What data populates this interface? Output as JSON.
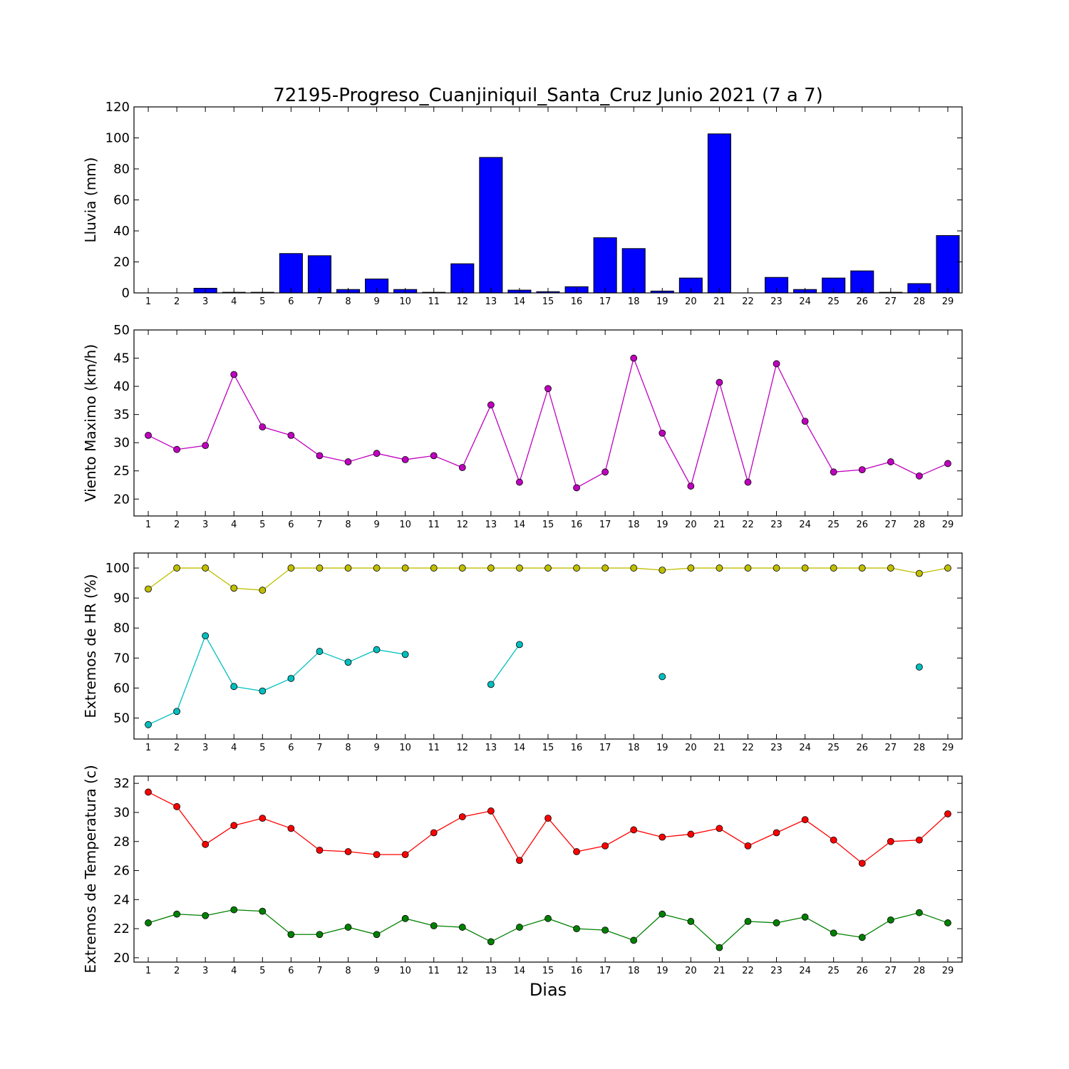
{
  "title": "72195-Progreso_Cuanjiniquil_Santa_Cruz Junio 2021  (7 a 7)",
  "xlabel": "Dias",
  "chart_data": [
    {
      "type": "bar",
      "ylabel": "Lluvia (mm)",
      "ylim": [
        0,
        120
      ],
      "yticks": [
        0,
        20,
        40,
        60,
        80,
        100,
        120
      ],
      "categories": [
        "1",
        "2",
        "3",
        "4",
        "5",
        "6",
        "7",
        "8",
        "9",
        "10",
        "11",
        "12",
        "13",
        "14",
        "15",
        "16",
        "17",
        "18",
        "19",
        "20",
        "21",
        "22",
        "23",
        "24",
        "25",
        "26",
        "27",
        "28",
        "29"
      ],
      "series": [
        {
          "color": "#0000ff",
          "values": [
            0,
            0,
            3,
            0.4,
            0.4,
            25.4,
            24,
            2.2,
            9,
            2.2,
            0.4,
            18.8,
            87.4,
            1.8,
            0.8,
            4,
            35.6,
            28.6,
            1.2,
            9.6,
            102.6,
            0,
            10,
            2.2,
            9.6,
            14.2,
            0.4,
            6,
            37
          ]
        }
      ],
      "grid": false
    },
    {
      "type": "line",
      "ylabel": "Viento Maximo (km/h)",
      "ylim": [
        17,
        50
      ],
      "yticks": [
        20,
        25,
        30,
        35,
        40,
        45,
        50
      ],
      "x": [
        1,
        2,
        3,
        4,
        5,
        6,
        7,
        8,
        9,
        10,
        11,
        12,
        13,
        14,
        15,
        16,
        17,
        18,
        19,
        20,
        21,
        22,
        23,
        24,
        25,
        26,
        27,
        28,
        29
      ],
      "series": [
        {
          "color": "#bf00bf",
          "values": [
            31.3,
            28.8,
            29.5,
            42.1,
            32.8,
            31.3,
            27.7,
            26.6,
            28.1,
            27,
            27.7,
            25.6,
            36.7,
            23,
            39.6,
            22,
            24.8,
            45,
            31.7,
            22.3,
            40.7,
            23,
            44,
            33.8,
            24.8,
            25.2,
            26.6,
            24.1,
            26.3
          ]
        }
      ],
      "grid": false
    },
    {
      "type": "line",
      "ylabel": "Extremos de HR (%)",
      "ylim": [
        43,
        105
      ],
      "yticks": [
        50,
        60,
        70,
        80,
        90,
        100
      ],
      "x": [
        1,
        2,
        3,
        4,
        5,
        6,
        7,
        8,
        9,
        10,
        11,
        12,
        13,
        14,
        15,
        16,
        17,
        18,
        19,
        20,
        21,
        22,
        23,
        24,
        25,
        26,
        27,
        28,
        29
      ],
      "series": [
        {
          "color": "#bfbf00",
          "values": [
            93,
            100,
            100,
            93.3,
            92.6,
            100,
            100,
            100,
            100,
            100,
            100,
            100,
            100,
            100,
            100,
            100,
            100,
            100,
            99.3,
            100,
            100,
            100,
            100,
            100,
            100,
            100,
            100,
            98.2,
            100
          ]
        },
        {
          "color": "#00bfbf",
          "values": [
            47.8,
            52.2,
            77.4,
            60.5,
            59,
            63.2,
            72.2,
            68.6,
            72.8,
            71.2,
            null,
            null,
            61.2,
            74.5,
            null,
            null,
            null,
            null,
            63.8,
            null,
            null,
            null,
            null,
            null,
            null,
            null,
            null,
            67,
            null
          ]
        }
      ],
      "grid": false
    },
    {
      "type": "line",
      "ylabel": "Extremos de Temperatura (c)",
      "ylim": [
        19.7,
        32.5
      ],
      "yticks": [
        20,
        22,
        24,
        26,
        28,
        30,
        32
      ],
      "x": [
        1,
        2,
        3,
        4,
        5,
        6,
        7,
        8,
        9,
        10,
        11,
        12,
        13,
        14,
        15,
        16,
        17,
        18,
        19,
        20,
        21,
        22,
        23,
        24,
        25,
        26,
        27,
        28,
        29
      ],
      "series": [
        {
          "color": "#ff0000",
          "values": [
            31.4,
            30.4,
            27.8,
            29.1,
            29.6,
            28.9,
            27.4,
            27.3,
            27.1,
            27.1,
            28.6,
            29.7,
            30.1,
            26.7,
            29.6,
            27.3,
            27.7,
            28.8,
            28.3,
            28.5,
            28.9,
            27.7,
            28.6,
            29.5,
            28.1,
            26.5,
            28,
            28.1,
            29.9
          ]
        },
        {
          "color": "#008000",
          "values": [
            22.4,
            23,
            22.9,
            23.3,
            23.2,
            21.6,
            21.6,
            22.1,
            21.6,
            22.7,
            22.2,
            22.1,
            21.1,
            22.1,
            22.7,
            22,
            21.9,
            21.2,
            23,
            22.5,
            20.7,
            22.5,
            22.4,
            22.8,
            21.7,
            21.4,
            22.6,
            23.1,
            22.4
          ]
        }
      ],
      "grid": false
    }
  ]
}
